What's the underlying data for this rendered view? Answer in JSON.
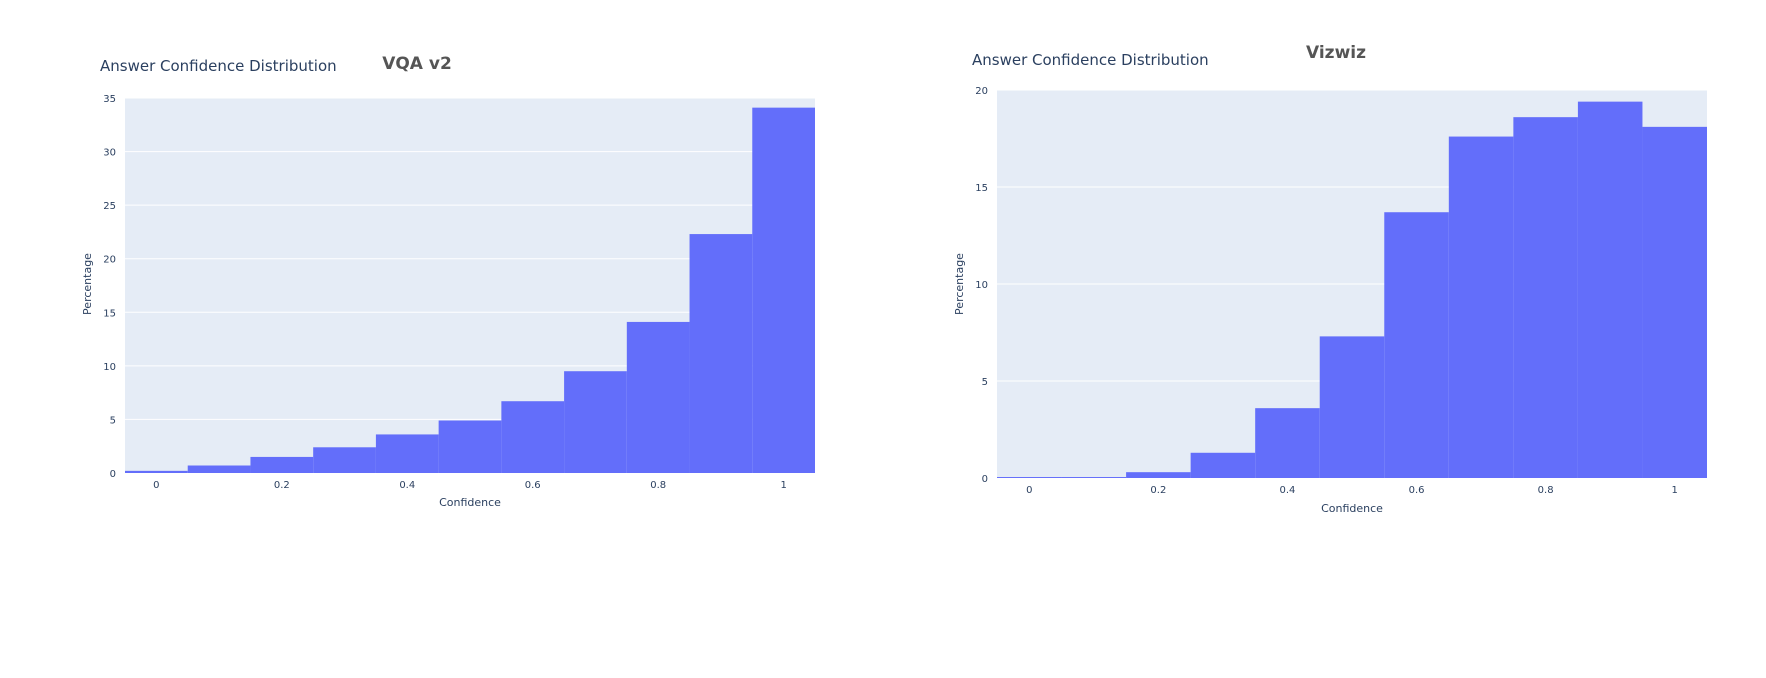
{
  "page_title": "Answer Confidence Distribution",
  "colors": {
    "bar": "#636efa",
    "plot_bg": "#e5ecf6",
    "grid": "#ffffff",
    "text": "#2a3f5f",
    "title_text": "#555555"
  },
  "chart_data": [
    {
      "type": "bar",
      "title": "VQA v2",
      "xlabel": "Confidence",
      "ylabel": "Percentage",
      "x_bins": [
        [
          -0.05,
          0.05
        ],
        [
          0.05,
          0.15
        ],
        [
          0.15,
          0.25
        ],
        [
          0.25,
          0.35
        ],
        [
          0.35,
          0.45
        ],
        [
          0.45,
          0.55
        ],
        [
          0.55,
          0.65
        ],
        [
          0.65,
          0.75
        ],
        [
          0.75,
          0.85
        ],
        [
          0.85,
          0.95
        ],
        [
          0.95,
          1.05
        ]
      ],
      "values": [
        0.2,
        0.7,
        1.5,
        2.4,
        3.6,
        4.9,
        6.7,
        9.5,
        14.1,
        22.3,
        34.1
      ],
      "xlim": [
        -0.05,
        1.05
      ],
      "ylim": [
        0,
        35
      ],
      "xticks": [
        "0",
        "0.2",
        "0.4",
        "0.6",
        "0.8",
        "1"
      ],
      "xtick_values": [
        0,
        0.2,
        0.4,
        0.6,
        0.8,
        1
      ],
      "yticks": [
        "0",
        "5",
        "10",
        "15",
        "20",
        "25",
        "30",
        "35"
      ],
      "ytick_values": [
        0,
        5,
        10,
        15,
        20,
        25,
        30,
        35
      ],
      "grid": true
    },
    {
      "type": "bar",
      "title": "Vizwiz",
      "xlabel": "Confidence",
      "ylabel": "Percentage",
      "x_bins": [
        [
          -0.05,
          0.05
        ],
        [
          0.05,
          0.15
        ],
        [
          0.15,
          0.25
        ],
        [
          0.25,
          0.35
        ],
        [
          0.35,
          0.45
        ],
        [
          0.45,
          0.55
        ],
        [
          0.55,
          0.65
        ],
        [
          0.65,
          0.75
        ],
        [
          0.75,
          0.85
        ],
        [
          0.85,
          0.95
        ],
        [
          0.95,
          1.05
        ]
      ],
      "values": [
        0.05,
        0.05,
        0.3,
        1.3,
        3.6,
        7.3,
        13.7,
        17.6,
        18.6,
        19.4,
        18.1
      ],
      "xlim": [
        -0.05,
        1.05
      ],
      "ylim": [
        0,
        20
      ],
      "xticks": [
        "0",
        "0.2",
        "0.4",
        "0.6",
        "0.8",
        "1"
      ],
      "xtick_values": [
        0,
        0.2,
        0.4,
        0.6,
        0.8,
        1
      ],
      "yticks": [
        "0",
        "5",
        "10",
        "15",
        "20"
      ],
      "ytick_values": [
        0,
        5,
        10,
        15,
        20
      ],
      "grid": true
    }
  ]
}
